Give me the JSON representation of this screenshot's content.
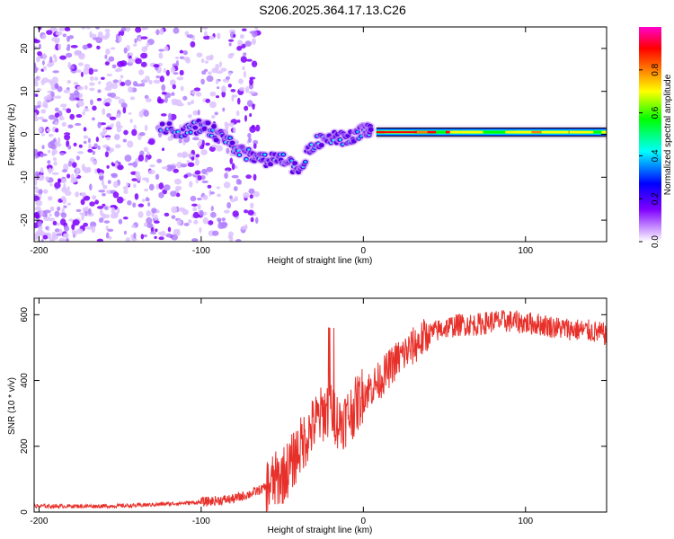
{
  "title": "S206.2025.364.17.13.C26",
  "chart_data": [
    {
      "type": "heatmap",
      "panel": "spectrogram",
      "xlabel": "Height of straight line (km)",
      "ylabel": "Frequency (Hz)",
      "xlim": [
        -203,
        150
      ],
      "ylim": [
        -25,
        25
      ],
      "xticks": [
        -200,
        -100,
        0,
        100
      ],
      "yticks": [
        -20,
        -10,
        0,
        10,
        20
      ],
      "colorbar": {
        "label": "Normalized spectral amplitude",
        "range": [
          0,
          1
        ],
        "ticks": [
          0.0,
          0.2,
          0.4,
          0.6,
          0.8
        ],
        "colors": [
          "#ffffff",
          "#cc99ff",
          "#7f00ff",
          "#0000ff",
          "#00ffff",
          "#00ff00",
          "#ffff00",
          "#ff7f00",
          "#ff0000",
          "#ff00cc"
        ]
      },
      "features": [
        {
          "name": "noise-cloud",
          "x_range": [
            -203,
            -65
          ],
          "freq_range": [
            -25,
            25
          ],
          "amplitude": 0.1
        },
        {
          "name": "dispersive-trace",
          "x": [
            -125,
            -110,
            -100,
            -90,
            -80,
            -70,
            -60,
            -50,
            -40,
            -30,
            -20,
            -10,
            0,
            5
          ],
          "freq": [
            1,
            1,
            2,
            0,
            -3,
            -5,
            -6,
            -6,
            -8,
            -2,
            -1,
            -1,
            1,
            0.5
          ],
          "amplitude": 0.35
        },
        {
          "name": "carrier-line",
          "x_range": [
            8,
            150
          ],
          "freq": 0.5,
          "amplitude": 0.9
        }
      ]
    },
    {
      "type": "line",
      "panel": "snr",
      "xlabel": "Height of straight line (km)",
      "ylabel": "SNR (10 * v/v)",
      "xlim": [
        -203,
        150
      ],
      "ylim": [
        0,
        650
      ],
      "xticks": [
        -200,
        -100,
        0,
        100
      ],
      "yticks": [
        0,
        200,
        400,
        600
      ],
      "color": "#e8302a",
      "series": [
        {
          "name": "SNR",
          "x": [
            -203,
            -180,
            -160,
            -140,
            -120,
            -100,
            -90,
            -80,
            -70,
            -60,
            -50,
            -45,
            -40,
            -35,
            -30,
            -25,
            -20,
            -15,
            -10,
            -5,
            0,
            5,
            10,
            15,
            20,
            30,
            40,
            50,
            60,
            70,
            80,
            90,
            100,
            110,
            120,
            130,
            140,
            150
          ],
          "values": [
            18,
            18,
            18,
            20,
            25,
            30,
            35,
            40,
            55,
            75,
            110,
            140,
            190,
            230,
            270,
            300,
            320,
            270,
            290,
            320,
            360,
            380,
            400,
            430,
            460,
            500,
            540,
            560,
            570,
            570,
            580,
            580,
            575,
            570,
            560,
            555,
            550,
            540
          ]
        }
      ]
    }
  ]
}
